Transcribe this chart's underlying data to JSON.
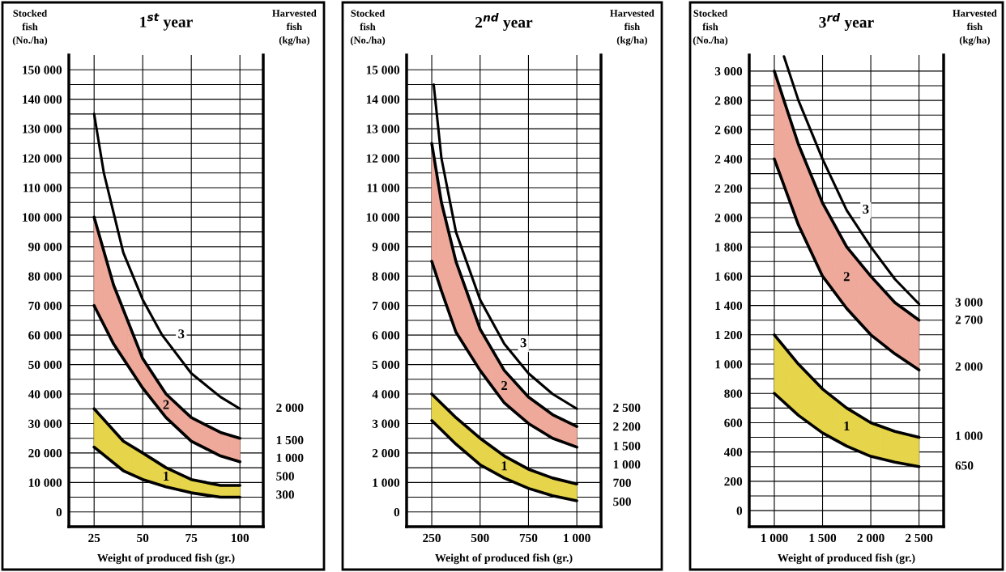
{
  "chart_data": [
    {
      "type": "line",
      "title": "1$^{st}$ year",
      "xlabel": "Weight of produced fish (gr.)",
      "ylabel": "Stocked\nfish\n(No./ha)",
      "y2label": "Harvested\nfish\n(kg/ha)",
      "grid": true,
      "xlim": [
        12,
        112
      ],
      "xticks": [
        25,
        50,
        75,
        100
      ],
      "ylim": [
        -5000,
        155000
      ],
      "yticks": [
        {
          "value": 0,
          "label": "0"
        },
        {
          "value": 5000,
          "label": null
        },
        {
          "value": 10000,
          "label": "10 000"
        },
        {
          "value": 15000,
          "label": null
        },
        {
          "value": 20000,
          "label": "20 000"
        },
        {
          "value": 25000,
          "label": null
        },
        {
          "value": 30000,
          "label": "30 000"
        },
        {
          "value": 35000,
          "label": null
        },
        {
          "value": 40000,
          "label": "40 000"
        },
        {
          "value": 45000,
          "label": null
        },
        {
          "value": 50000,
          "label": "50 000"
        },
        {
          "value": 55000,
          "label": null
        },
        {
          "value": 60000,
          "label": "60 000"
        },
        {
          "value": 65000,
          "label": null
        },
        {
          "value": 70000,
          "label": "70 000"
        },
        {
          "value": 75000,
          "label": null
        },
        {
          "value": 80000,
          "label": "80 000"
        },
        {
          "value": 85000,
          "label": null
        },
        {
          "value": 90000,
          "label": "90 000"
        },
        {
          "value": 95000,
          "label": null
        },
        {
          "value": 100000,
          "label": "100 000"
        },
        {
          "value": 105000,
          "label": null
        },
        {
          "value": 110000,
          "label": "110 000"
        },
        {
          "value": 115000,
          "label": null
        },
        {
          "value": 120000,
          "label": "120 000"
        },
        {
          "value": 125000,
          "label": null
        },
        {
          "value": 130000,
          "label": "130 000"
        },
        {
          "value": 135000,
          "label": null
        },
        {
          "value": 140000,
          "label": "140 000"
        },
        {
          "value": 145000,
          "label": null
        },
        {
          "value": 150000,
          "label": "150 000"
        }
      ],
      "series": [
        {
          "color": "#000000",
          "x": [
            25,
            40,
            50,
            62,
            75,
            90,
            100
          ],
          "values": [
            22000,
            14000,
            11000,
            8500,
            6500,
            5000,
            5000
          ]
        },
        {
          "name": "1",
          "color": "#000000",
          "colors": [
            "#e6d44a",
            "#e6d44a",
            "#e6d44a",
            "#e6d44a",
            "#e6d44a",
            "#e6d44a",
            "#e6d44a"
          ],
          "x": [
            25,
            40,
            50,
            62,
            75,
            90,
            100
          ],
          "values": [
            35000,
            24000,
            20000,
            15000,
            11000,
            9000,
            9000
          ],
          "upper": [
            35000,
            24000,
            20000,
            15000,
            11000,
            9000,
            9000
          ],
          "lower": [
            22000,
            14000,
            11000,
            8500,
            6500,
            5000,
            5000
          ]
        },
        {
          "color": "#000000",
          "x": [
            25,
            35,
            50,
            62,
            75,
            90,
            100
          ],
          "values": [
            70000,
            57000,
            42000,
            32000,
            24000,
            19000,
            17000
          ]
        },
        {
          "name": "2",
          "color": "#000000",
          "colors": [
            "#eea99b",
            "#eea99b",
            "#eea99b",
            "#eea99b",
            "#eea99b",
            "#eea99b",
            "#eea99b"
          ],
          "x": [
            25,
            35,
            50,
            62,
            75,
            90,
            100
          ],
          "values": [
            100000,
            77000,
            52000,
            40000,
            32000,
            27000,
            25000
          ],
          "upper": [
            100000,
            77000,
            52000,
            40000,
            32000,
            27000,
            25000
          ],
          "lower": [
            70000,
            57000,
            42000,
            32000,
            24000,
            19000,
            17000
          ]
        },
        {
          "name": "3",
          "color": "#000000",
          "x": [
            25,
            30,
            40,
            50,
            60,
            75,
            90,
            100
          ],
          "values": [
            135000,
            115000,
            88000,
            72000,
            60000,
            47000,
            39000,
            35000
          ]
        }
      ],
      "annotations": [
        {
          "text": "2 000",
          "x": 100,
          "y": 35000
        },
        {
          "text": "1 500",
          "x": 100,
          "y": 24000
        },
        {
          "text": "1 000",
          "x": 100,
          "y": 18000
        },
        "500",
        {
          "text": "300",
          "x": 100,
          "y": 5500
        }
      ]
    },
    {
      "type": "line",
      "title": "2$^{nd}$ year",
      "xlabel": "Weight of produced fish (gr.)",
      "ylabel": "Stocked\nfish\n(No./ha)",
      "y2label": "Harvested\nfish\n(kg/ha)",
      "grid": true,
      "xlim": [
        120,
        1125
      ],
      "xticks": [
        250,
        500,
        750,
        {
          "value": 1000,
          "label": "1 000"
        }
      ],
      "ylim": [
        -500,
        15500
      ],
      "yticks": [
        {
          "value": 0,
          "label": "0"
        },
        {
          "value": 500,
          "label": null
        },
        {
          "value": 1000,
          "label": "1 000"
        },
        {
          "value": 1500,
          "label": null
        },
        {
          "value": 2000,
          "label": "2 000"
        },
        {
          "value": 2500,
          "label": null
        },
        {
          "value": 3000,
          "label": "3 000"
        },
        {
          "value": 3500,
          "label": null
        },
        {
          "value": 4000,
          "label": "4 000"
        },
        {
          "value": 4500,
          "label": null
        },
        {
          "value": 5000,
          "label": "5 000"
        },
        {
          "value": 5500,
          "label": null
        },
        {
          "value": 6000,
          "label": "6 000"
        },
        {
          "value": 6500,
          "label": null
        },
        {
          "value": 7000,
          "label": "7 000"
        },
        {
          "value": 7500,
          "label": null
        },
        {
          "value": 8000,
          "label": "8 000"
        },
        {
          "value": 8500,
          "label": null
        },
        {
          "value": 9000,
          "label": "9 000"
        },
        {
          "value": 9500,
          "label": null
        },
        {
          "value": 10000,
          "label": "10 000"
        },
        {
          "value": 10500,
          "label": null
        },
        {
          "value": 11000,
          "label": "11 000"
        },
        {
          "value": 11500,
          "label": null
        },
        {
          "value": 12000,
          "label": "12 000"
        },
        {
          "value": 12500,
          "label": null
        },
        {
          "value": 13000,
          "label": "13 000"
        },
        {
          "value": 13500,
          "label": null
        },
        {
          "value": 14000,
          "label": "14 000"
        },
        {
          "value": 14500,
          "label": null
        },
        {
          "value": 15000,
          "label": "15 000"
        }
      ],
      "series": [
        {
          "color": "#000000",
          "x": [
            250,
            375,
            500,
            625,
            750,
            875,
            1000
          ],
          "values": [
            3100,
            2300,
            1600,
            1150,
            800,
            550,
            380
          ]
        },
        {
          "name": "1",
          "color": "#000000",
          "colors": [
            "#e6d44a",
            "#e6d44a",
            "#e6d44a",
            "#e6d44a",
            "#e6d44a",
            "#e6d44a",
            "#e6d44a"
          ],
          "x": [
            250,
            375,
            500,
            625,
            750,
            875,
            1000
          ],
          "values": [
            4000,
            3200,
            2500,
            1900,
            1450,
            1150,
            950
          ],
          "upper": [
            4000,
            3200,
            2500,
            1900,
            1450,
            1150,
            950
          ],
          "lower": [
            3100,
            2300,
            1600,
            1150,
            800,
            550,
            380
          ]
        },
        {
          "color": "#000000",
          "x": [
            250,
            300,
            375,
            500,
            625,
            750,
            875,
            1000
          ],
          "values": [
            8500,
            7500,
            6100,
            4800,
            3700,
            3000,
            2500,
            2200
          ]
        },
        {
          "name": "2",
          "color": "#000000",
          "colors": [
            "#eea99b",
            "#eea99b",
            "#eea99b",
            "#eea99b",
            "#eea99b",
            "#eea99b",
            "#eea99b",
            "#eea99b"
          ],
          "x": [
            250,
            300,
            375,
            500,
            625,
            750,
            875,
            1000
          ],
          "values": [
            12500,
            10500,
            8500,
            6200,
            4800,
            3900,
            3300,
            2900
          ],
          "upper": [
            12500,
            10500,
            8500,
            6200,
            4800,
            3900,
            3300,
            2900
          ],
          "lower": [
            8500,
            7500,
            6100,
            4800,
            3700,
            3000,
            2500,
            2200
          ]
        },
        {
          "name": "3",
          "color": "#000000",
          "x": [
            260,
            300,
            375,
            500,
            625,
            750,
            875,
            1000
          ],
          "values": [
            14500,
            12000,
            9500,
            7200,
            5700,
            4700,
            4000,
            3500
          ]
        }
      ],
      "annotations": [
        {
          "text": "2 500",
          "x": 1000,
          "y": 3500
        },
        {
          "text": "2 200",
          "x": 1000,
          "y": 2860
        },
        {
          "text": "1 500",
          "x": 1000,
          "y": 2200
        },
        "1 000",
        {
          "text": "700",
          "x": 1000,
          "y": 950
        },
        {
          "text": "500",
          "x": 1000,
          "y": 310
        }
      ]
    },
    {
      "type": "line",
      "title": "3$^{rd}$ year",
      "xlabel": "Weight of produced fish (gr.)",
      "ylabel": "Stocked\nfish\n(No./ha)",
      "y2label": "Harvested\nfish\n(kg/ha)",
      "grid": true,
      "xlim": [
        740,
        2755
      ],
      "xticks": [
        {
          "value": 1000,
          "label": "1 000"
        },
        {
          "value": 1500,
          "label": "1 500"
        },
        {
          "value": 2000,
          "label": "2 000"
        },
        {
          "value": 2500,
          "label": "2 500"
        }
      ],
      "ylim": [
        -110,
        3110
      ],
      "yticks": [
        {
          "value": 0,
          "label": "0"
        },
        {
          "value": 100,
          "label": null
        },
        {
          "value": 200,
          "label": "200"
        },
        {
          "value": 300,
          "label": null
        },
        {
          "value": 400,
          "label": "400"
        },
        {
          "value": 500,
          "label": null
        },
        {
          "value": 600,
          "label": "600"
        },
        {
          "value": 700,
          "label": null
        },
        {
          "value": 800,
          "label": "800"
        },
        {
          "value": 900,
          "label": null
        },
        {
          "value": 1000,
          "label": "1 000"
        },
        {
          "value": 1100,
          "label": null
        },
        {
          "value": 1200,
          "label": "1 200"
        },
        {
          "value": 1300,
          "label": null
        },
        {
          "value": 1400,
          "label": "1 400"
        },
        {
          "value": 1500,
          "label": null
        },
        {
          "value": 1600,
          "label": "1 600"
        },
        {
          "value": 1700,
          "label": null
        },
        {
          "value": 1800,
          "label": "1 800"
        },
        {
          "value": 1900,
          "label": null
        },
        {
          "value": 2000,
          "label": "2 000"
        },
        {
          "value": 2100,
          "label": null
        },
        {
          "value": 2200,
          "label": "2 200"
        },
        {
          "value": 2300,
          "label": null
        },
        {
          "value": 2400,
          "label": "2 400"
        },
        {
          "value": 2500,
          "label": null
        },
        {
          "value": 2600,
          "label": "2 600"
        },
        {
          "value": 2700,
          "label": null
        },
        {
          "value": 2800,
          "label": "2 800"
        },
        {
          "value": 2900,
          "label": null
        },
        {
          "value": 3000,
          "label": "3 000"
        }
      ],
      "series": [
        {
          "color": "#000000",
          "x": [
            1000,
            1250,
            1500,
            1750,
            2000,
            2250,
            2500
          ],
          "values": [
            800,
            650,
            530,
            440,
            370,
            330,
            300
          ]
        },
        {
          "name": "1",
          "color": "#000000",
          "colors": [
            "#e6d44a",
            "#e6d44a",
            "#e6d44a",
            "#e6d44a",
            "#e6d44a",
            "#e6d44a",
            "#e6d44a"
          ],
          "x": [
            1000,
            1250,
            1500,
            1750,
            2000,
            2250,
            2500
          ],
          "values": [
            1200,
            1000,
            830,
            700,
            600,
            540,
            500
          ],
          "upper": [
            1200,
            1000,
            830,
            700,
            600,
            540,
            500
          ],
          "lower": [
            800,
            650,
            530,
            440,
            370,
            330,
            300
          ]
        },
        {
          "color": "#000000",
          "x": [
            1000,
            1250,
            1500,
            1750,
            2000,
            2250,
            2500
          ],
          "values": [
            2400,
            1950,
            1600,
            1380,
            1200,
            1070,
            960
          ]
        },
        {
          "name": "2",
          "color": "#000000",
          "colors": [
            "#eea99b",
            "#eea99b",
            "#eea99b",
            "#eea99b",
            "#eea99b",
            "#eea99b",
            "#eea99b"
          ],
          "x": [
            1000,
            1250,
            1500,
            1750,
            2000,
            2250,
            2500
          ],
          "values": [
            3000,
            2500,
            2100,
            1800,
            1600,
            1420,
            1300
          ],
          "upper": [
            3000,
            2500,
            2100,
            1800,
            1600,
            1420,
            1300
          ],
          "lower": [
            2400,
            1950,
            1600,
            1380,
            1200,
            1070,
            960
          ]
        },
        {
          "name": "3",
          "color": "#000000",
          "x": [
            1100,
            1250,
            1500,
            1750,
            2000,
            2250,
            2500
          ],
          "values": [
            3100,
            2800,
            2400,
            2050,
            1800,
            1580,
            1410
          ]
        }
      ],
      "annotations": [
        {
          "text": "3 000",
          "x": 2500,
          "y": 1415
        },
        {
          "text": "2 700",
          "x": 2500,
          "y": 1295
        },
        {
          "text": "2 000",
          "x": 2500,
          "y": 976
        },
        {
          "text": "1 000",
          "x": 2500,
          "y": 503
        },
        {
          "text": "650",
          "x": 2500,
          "y": 300
        }
      ]
    }
  ]
}
